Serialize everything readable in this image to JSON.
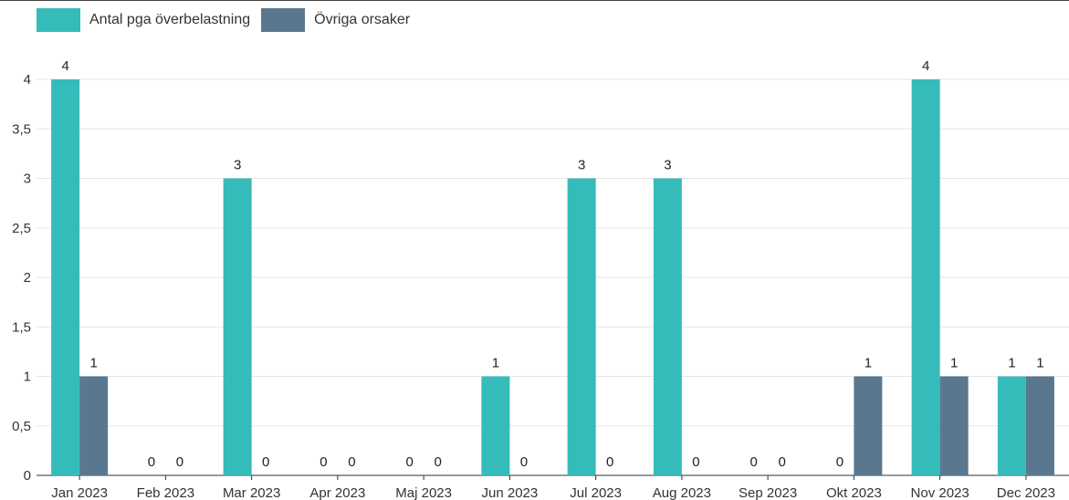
{
  "chart_data": {
    "type": "bar",
    "categories": [
      "Jan 2023",
      "Feb 2023",
      "Mar 2023",
      "Apr 2023",
      "Maj 2023",
      "Jun 2023",
      "Jul 2023",
      "Aug 2023",
      "Sep 2023",
      "Okt 2023",
      "Nov 2023",
      "Dec 2023"
    ],
    "series": [
      {
        "name": "Antal pga överbelastning",
        "color": "#36bbbb",
        "values": [
          4,
          0,
          3,
          0,
          0,
          1,
          3,
          3,
          0,
          0,
          4,
          1
        ]
      },
      {
        "name": "Övriga orsaker",
        "color": "#5a7790",
        "values": [
          1,
          0,
          0,
          0,
          0,
          0,
          0,
          0,
          0,
          1,
          1,
          1
        ]
      }
    ],
    "yticks": [
      "0",
      "0,5",
      "1",
      "1,5",
      "2",
      "2,5",
      "3",
      "3,5",
      "4"
    ],
    "ylim": [
      0,
      4
    ],
    "grid": true,
    "legend_position": "top-left",
    "data_labels": true
  }
}
